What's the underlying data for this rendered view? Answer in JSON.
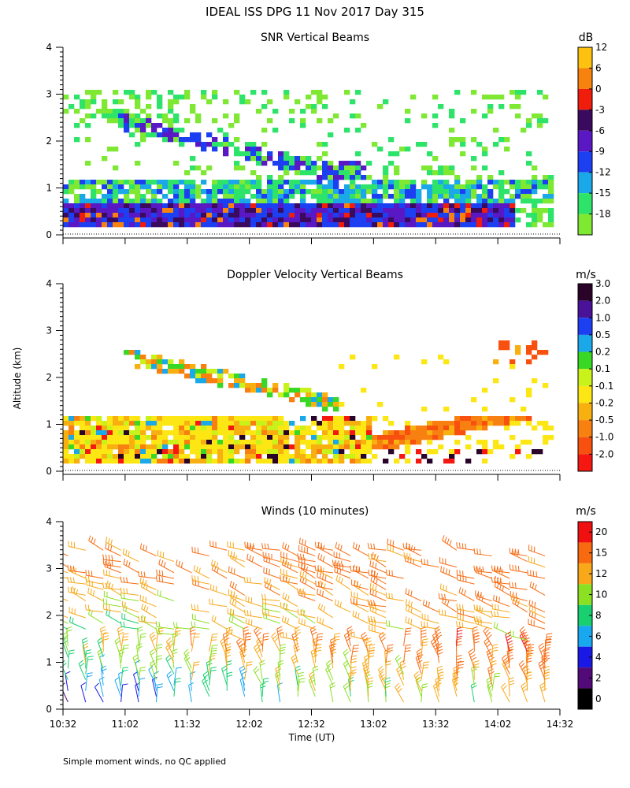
{
  "figure": {
    "main_title": "IDEAL ISS DPG  11 Nov 2017 Day 315",
    "ylabel": "Altitude (km)",
    "xlabel": "Time (UT)",
    "footnote": "Simple moment winds, no QC applied"
  },
  "chart_data": [
    {
      "type": "heatmap",
      "title": "SNR Vertical Beams",
      "ylabel": "Altitude (km)",
      "ylim": [
        0,
        4
      ],
      "y_ticks": [
        "0",
        "1",
        "2",
        "3",
        "4"
      ],
      "xlim": [
        "10:32",
        "14:32"
      ],
      "colorbar": {
        "unit": "dB",
        "labels": [
          "-18",
          "-15",
          "-12",
          "-9",
          "-6",
          "-3",
          "0",
          "6",
          "12"
        ],
        "colors": [
          "#7ee832",
          "#2ee36a",
          "#1aa8e8",
          "#1c3ff2",
          "#5a18c4",
          "#3a0a5e",
          "#f01c0c",
          "#f8820e",
          "#fdc210"
        ]
      },
      "features": [
        {
          "name": "low-strong-layer",
          "alt_km": [
            0.2,
            0.7
          ],
          "level": "-6 to -3 dB"
        },
        {
          "name": "mid-layer",
          "alt_km": [
            0.7,
            1.2
          ],
          "level": "-15 to -9 dB"
        },
        {
          "name": "elevated-band",
          "alt_km": [
            1.5,
            2.5
          ],
          "level": "-9 to -3 dB"
        },
        {
          "name": "upper-clouds",
          "alt_km": [
            2.5,
            3.0
          ],
          "level": "-18 to -15 dB"
        }
      ]
    },
    {
      "type": "heatmap",
      "title": "Doppler Velocity Vertical Beams",
      "ylabel": "Altitude (km)",
      "ylim": [
        0,
        4
      ],
      "y_ticks": [
        "0",
        "1",
        "2",
        "3",
        "4"
      ],
      "xlim": [
        "10:32",
        "14:32"
      ],
      "colorbar": {
        "unit": "m/s",
        "labels": [
          "-2.0",
          "-1.0",
          "-0.5",
          "-0.2",
          "-0.1",
          "0.1",
          "0.2",
          "0.5",
          "1.0",
          "2.0",
          "3.0"
        ],
        "colors": [
          "#f41810",
          "#f8500e",
          "#f88010",
          "#f8b010",
          "#fce614",
          "#c8f21a",
          "#38d824",
          "#1aa8e8",
          "#1c3ff2",
          "#4a1296",
          "#2a0428"
        ]
      },
      "features": [
        {
          "name": "low-layer",
          "alt_km": [
            0.2,
            1.1
          ],
          "level": "-0.2 to -0.1 m/s"
        },
        {
          "name": "elevated-band",
          "alt_km": [
            1.5,
            2.6
          ],
          "level": "mixed"
        }
      ]
    },
    {
      "type": "scatter",
      "title": "Winds (10 minutes)",
      "ylabel": "Altitude (km)",
      "xlabel": "Time (UT)",
      "ylim": [
        0,
        4
      ],
      "y_ticks": [
        "0",
        "1",
        "2",
        "3",
        "4"
      ],
      "xlim": [
        "10:32",
        "14:32"
      ],
      "x_ticks": [
        "10:32",
        "11:02",
        "11:32",
        "12:02",
        "12:32",
        "13:02",
        "13:32",
        "14:02",
        "14:32"
      ],
      "colorbar": {
        "unit": "m/s",
        "labels": [
          "0",
          "2",
          "4",
          "6",
          "8",
          "10",
          "12",
          "15",
          "20"
        ],
        "colors": [
          "#000000",
          "#520a78",
          "#1a18e4",
          "#18a8f0",
          "#18d070",
          "#8ce022",
          "#f8a818",
          "#f86a10",
          "#f01010"
        ]
      },
      "series": [
        {
          "name": "wind barbs",
          "description": "10-minute averaged wind barbs, colored by speed (m/s)"
        }
      ]
    }
  ]
}
